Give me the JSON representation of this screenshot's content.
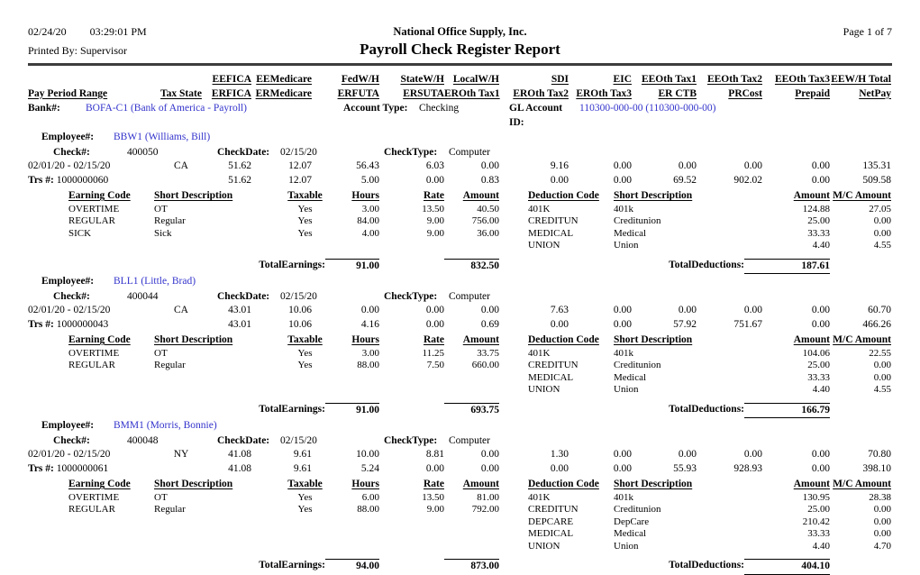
{
  "page": {
    "date": "02/24/20",
    "time": "03:29:01 PM",
    "printed_by": "Printed By: Supervisor",
    "company": "National Office Supply, Inc.",
    "page_label": "Page 1 of 7",
    "title": "Payroll Check Register Report"
  },
  "colors": {
    "link": "#3333cc",
    "rule": "#3d3d3d"
  },
  "columns": {
    "ee": [
      "EEFICA",
      "EEMedicare",
      "FedW/H",
      "StateW/H",
      "LocalW/H",
      "SDI",
      "EIC",
      "EEOth Tax1",
      "EEOth Tax2",
      "EEOth Tax3",
      "EEW/H Total"
    ],
    "er": [
      "ERFICA",
      "ERMedicare",
      "ERFUTA",
      "ERSUTA",
      "EROth Tax1",
      "EROth Tax2",
      "EROth Tax3",
      "ER CTB",
      "PRCost",
      "Prepaid",
      "NetPay"
    ],
    "pay_period_range": "Pay Period Range",
    "tax_state": "Tax State"
  },
  "bank": {
    "label": "Bank#:",
    "value": "BOFA-C1 (Bank of America - Payroll)",
    "account_type_label": "Account Type:",
    "account_type": "Checking",
    "gl_label": "GL Account ID:",
    "gl_value": "110300-000-00 (110300-000-00)"
  },
  "labels": {
    "employee": "Employee#:",
    "check": "Check#:",
    "check_date": "CheckDate:",
    "check_type": "CheckType:",
    "trs": "Trs #:",
    "earning_code": "Earning Code",
    "short_description": "Short Description",
    "taxable": "Taxable",
    "hours": "Hours",
    "rate": "Rate",
    "amount": "Amount",
    "deduction_code": "Deduction Code",
    "mc_amount": "M/C Amount",
    "total_earnings": "TotalEarnings:",
    "total_deductions": "TotalDeductions:"
  },
  "employees": [
    {
      "id": "BBW1 (Williams, Bill)",
      "check_no": "400050",
      "check_date": "02/15/20",
      "check_type": "Computer",
      "pay_period": "02/01/20 - 02/15/20",
      "tax_state": "CA",
      "trs_no": "1000000060",
      "ee_row": [
        "51.62",
        "12.07",
        "56.43",
        "6.03",
        "0.00",
        "9.16",
        "0.00",
        "0.00",
        "0.00",
        "0.00",
        "135.31"
      ],
      "er_row": [
        "51.62",
        "12.07",
        "5.00",
        "0.00",
        "0.83",
        "0.00",
        "0.00",
        "69.52",
        "902.02",
        "0.00",
        "509.58"
      ],
      "earnings": [
        {
          "code": "OVERTIME",
          "desc": "OT",
          "taxable": "Yes",
          "hours": "3.00",
          "rate": "13.50",
          "amount": "40.50"
        },
        {
          "code": "REGULAR",
          "desc": "Regular",
          "taxable": "Yes",
          "hours": "84.00",
          "rate": "9.00",
          "amount": "756.00"
        },
        {
          "code": "SICK",
          "desc": "Sick",
          "taxable": "Yes",
          "hours": "4.00",
          "rate": "9.00",
          "amount": "36.00"
        }
      ],
      "deductions": [
        {
          "code": "401K",
          "desc": "401k",
          "amount": "124.88",
          "mc": "27.05"
        },
        {
          "code": "CREDITUN",
          "desc": "Creditunion",
          "amount": "25.00",
          "mc": "0.00"
        },
        {
          "code": "MEDICAL",
          "desc": "Medical",
          "amount": "33.33",
          "mc": "0.00"
        },
        {
          "code": "UNION",
          "desc": "Union",
          "amount": "4.40",
          "mc": "4.55"
        }
      ],
      "total_hours": "91.00",
      "total_amount": "832.50",
      "total_deductions": "187.61"
    },
    {
      "id": "BLL1 (Little, Brad)",
      "check_no": "400044",
      "check_date": "02/15/20",
      "check_type": "Computer",
      "pay_period": "02/01/20 - 02/15/20",
      "tax_state": "CA",
      "trs_no": "1000000043",
      "ee_row": [
        "43.01",
        "10.06",
        "0.00",
        "0.00",
        "0.00",
        "7.63",
        "0.00",
        "0.00",
        "0.00",
        "0.00",
        "60.70"
      ],
      "er_row": [
        "43.01",
        "10.06",
        "4.16",
        "0.00",
        "0.69",
        "0.00",
        "0.00",
        "57.92",
        "751.67",
        "0.00",
        "466.26"
      ],
      "earnings": [
        {
          "code": "OVERTIME",
          "desc": "OT",
          "taxable": "Yes",
          "hours": "3.00",
          "rate": "11.25",
          "amount": "33.75"
        },
        {
          "code": "REGULAR",
          "desc": "Regular",
          "taxable": "Yes",
          "hours": "88.00",
          "rate": "7.50",
          "amount": "660.00"
        }
      ],
      "deductions": [
        {
          "code": "401K",
          "desc": "401k",
          "amount": "104.06",
          "mc": "22.55"
        },
        {
          "code": "CREDITUN",
          "desc": "Creditunion",
          "amount": "25.00",
          "mc": "0.00"
        },
        {
          "code": "MEDICAL",
          "desc": "Medical",
          "amount": "33.33",
          "mc": "0.00"
        },
        {
          "code": "UNION",
          "desc": "Union",
          "amount": "4.40",
          "mc": "4.55"
        }
      ],
      "total_hours": "91.00",
      "total_amount": "693.75",
      "total_deductions": "166.79"
    },
    {
      "id": "BMM1 (Morris, Bonnie)",
      "check_no": "400048",
      "check_date": "02/15/20",
      "check_type": "Computer",
      "pay_period": "02/01/20 - 02/15/20",
      "tax_state": "NY",
      "trs_no": "1000000061",
      "ee_row": [
        "41.08",
        "9.61",
        "10.00",
        "8.81",
        "0.00",
        "1.30",
        "0.00",
        "0.00",
        "0.00",
        "0.00",
        "70.80"
      ],
      "er_row": [
        "41.08",
        "9.61",
        "5.24",
        "0.00",
        "0.00",
        "0.00",
        "0.00",
        "55.93",
        "928.93",
        "0.00",
        "398.10"
      ],
      "earnings": [
        {
          "code": "OVERTIME",
          "desc": "OT",
          "taxable": "Yes",
          "hours": "6.00",
          "rate": "13.50",
          "amount": "81.00"
        },
        {
          "code": "REGULAR",
          "desc": "Regular",
          "taxable": "Yes",
          "hours": "88.00",
          "rate": "9.00",
          "amount": "792.00"
        }
      ],
      "deductions": [
        {
          "code": "401K",
          "desc": "401k",
          "amount": "130.95",
          "mc": "28.38"
        },
        {
          "code": "CREDITUN",
          "desc": "Creditunion",
          "amount": "25.00",
          "mc": "0.00"
        },
        {
          "code": "DEPCARE",
          "desc": "DepCare",
          "amount": "210.42",
          "mc": "0.00"
        },
        {
          "code": "MEDICAL",
          "desc": "Medical",
          "amount": "33.33",
          "mc": "0.00"
        },
        {
          "code": "UNION",
          "desc": "Union",
          "amount": "4.40",
          "mc": "4.70"
        }
      ],
      "total_hours": "94.00",
      "total_amount": "873.00",
      "total_deductions": "404.10"
    }
  ]
}
